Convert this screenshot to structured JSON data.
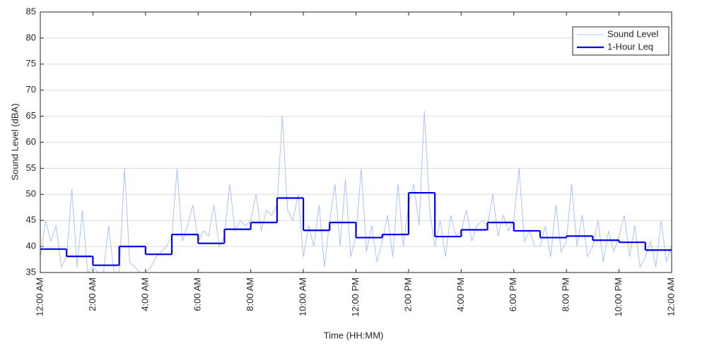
{
  "chart_data": {
    "type": "line",
    "xlabel": "Time (HH:MM)",
    "ylabel": "Sound Level (dBA)",
    "xlim": [
      0,
      24
    ],
    "ylim": [
      35,
      85
    ],
    "xticks": [
      {
        "value": 0,
        "label": "12:00 AM"
      },
      {
        "value": 2,
        "label": "2:00 AM"
      },
      {
        "value": 4,
        "label": "4:00 AM"
      },
      {
        "value": 6,
        "label": "6:00 AM"
      },
      {
        "value": 8,
        "label": "8:00 AM"
      },
      {
        "value": 10,
        "label": "10:00 AM"
      },
      {
        "value": 12,
        "label": "12:00 PM"
      },
      {
        "value": 14,
        "label": "2:00 PM"
      },
      {
        "value": 16,
        "label": "4:00 PM"
      },
      {
        "value": 18,
        "label": "6:00 PM"
      },
      {
        "value": 20,
        "label": "8:00 PM"
      },
      {
        "value": 22,
        "label": "10:00 PM"
      },
      {
        "value": 24,
        "label": "12:00 AM"
      }
    ],
    "yticks": [
      35,
      40,
      45,
      50,
      55,
      60,
      65,
      70,
      75,
      80,
      85
    ],
    "grid": true,
    "legend": "upper right",
    "series": [
      {
        "name": "Sound Level",
        "color": "#a9c4f5",
        "style": "line",
        "x": [
          0,
          0.2,
          0.4,
          0.6,
          0.8,
          1,
          1.2,
          1.4,
          1.6,
          1.8,
          2,
          2.2,
          2.4,
          2.6,
          2.8,
          3,
          3.2,
          3.4,
          3.6,
          3.8,
          4,
          4.2,
          4.4,
          4.6,
          4.8,
          5,
          5.2,
          5.4,
          5.6,
          5.8,
          6,
          6.2,
          6.4,
          6.6,
          6.8,
          7,
          7.2,
          7.4,
          7.6,
          7.8,
          8,
          8.2,
          8.4,
          8.6,
          8.8,
          9,
          9.2,
          9.4,
          9.6,
          9.8,
          10,
          10.2,
          10.4,
          10.6,
          10.8,
          11,
          11.2,
          11.4,
          11.6,
          11.8,
          12,
          12.2,
          12.4,
          12.6,
          12.8,
          13,
          13.2,
          13.4,
          13.6,
          13.8,
          14,
          14.2,
          14.4,
          14.6,
          14.8,
          15,
          15.2,
          15.4,
          15.6,
          15.8,
          16,
          16.2,
          16.4,
          16.6,
          16.8,
          17,
          17.2,
          17.4,
          17.6,
          17.8,
          18,
          18.2,
          18.4,
          18.6,
          18.8,
          19,
          19.2,
          19.4,
          19.6,
          19.8,
          20,
          20.2,
          20.4,
          20.6,
          20.8,
          21,
          21.2,
          21.4,
          21.6,
          21.8,
          22,
          22.2,
          22.4,
          22.6,
          22.8,
          23,
          23.2,
          23.4,
          23.6,
          23.8,
          24
        ],
        "values": [
          38,
          45,
          41,
          44,
          36,
          38,
          51,
          36,
          47,
          35,
          36,
          35,
          35,
          44,
          35,
          35,
          55,
          37,
          36,
          35,
          35,
          36,
          38,
          39,
          40,
          42,
          55,
          41,
          44,
          48,
          41,
          43,
          42,
          48,
          40,
          42,
          52,
          43,
          45,
          44,
          45,
          50,
          43,
          47,
          46,
          48,
          65,
          47,
          45,
          50,
          38,
          44,
          40,
          48,
          36,
          45,
          52,
          40,
          53,
          38,
          42,
          55,
          39,
          44,
          37,
          41,
          46,
          38,
          52,
          40,
          48,
          52,
          44,
          66,
          47,
          40,
          45,
          38,
          46,
          42,
          43,
          47,
          41,
          44,
          45,
          44,
          50,
          42,
          46,
          43,
          45,
          55,
          41,
          43,
          40,
          40,
          44,
          38,
          48,
          39,
          41,
          52,
          40,
          46,
          38,
          40,
          45,
          37,
          43,
          39,
          42,
          46,
          38,
          44,
          36,
          38,
          41,
          36,
          45,
          37,
          40
        ]
      },
      {
        "name": "1-Hour Leq",
        "color": "#0000ee",
        "style": "step",
        "x": [
          0,
          1,
          2,
          3,
          4,
          5,
          6,
          7,
          8,
          9,
          10,
          11,
          12,
          13,
          14,
          15,
          16,
          17,
          18,
          19,
          20,
          21,
          22,
          23
        ],
        "values": [
          39.5,
          38.1,
          36.4,
          40.0,
          38.5,
          42.3,
          40.6,
          43.3,
          44.6,
          49.3,
          43.1,
          44.6,
          41.7,
          42.3,
          50.3,
          41.9,
          43.2,
          44.6,
          43.0,
          41.7,
          42.0,
          41.2,
          40.8,
          39.3
        ]
      }
    ]
  }
}
